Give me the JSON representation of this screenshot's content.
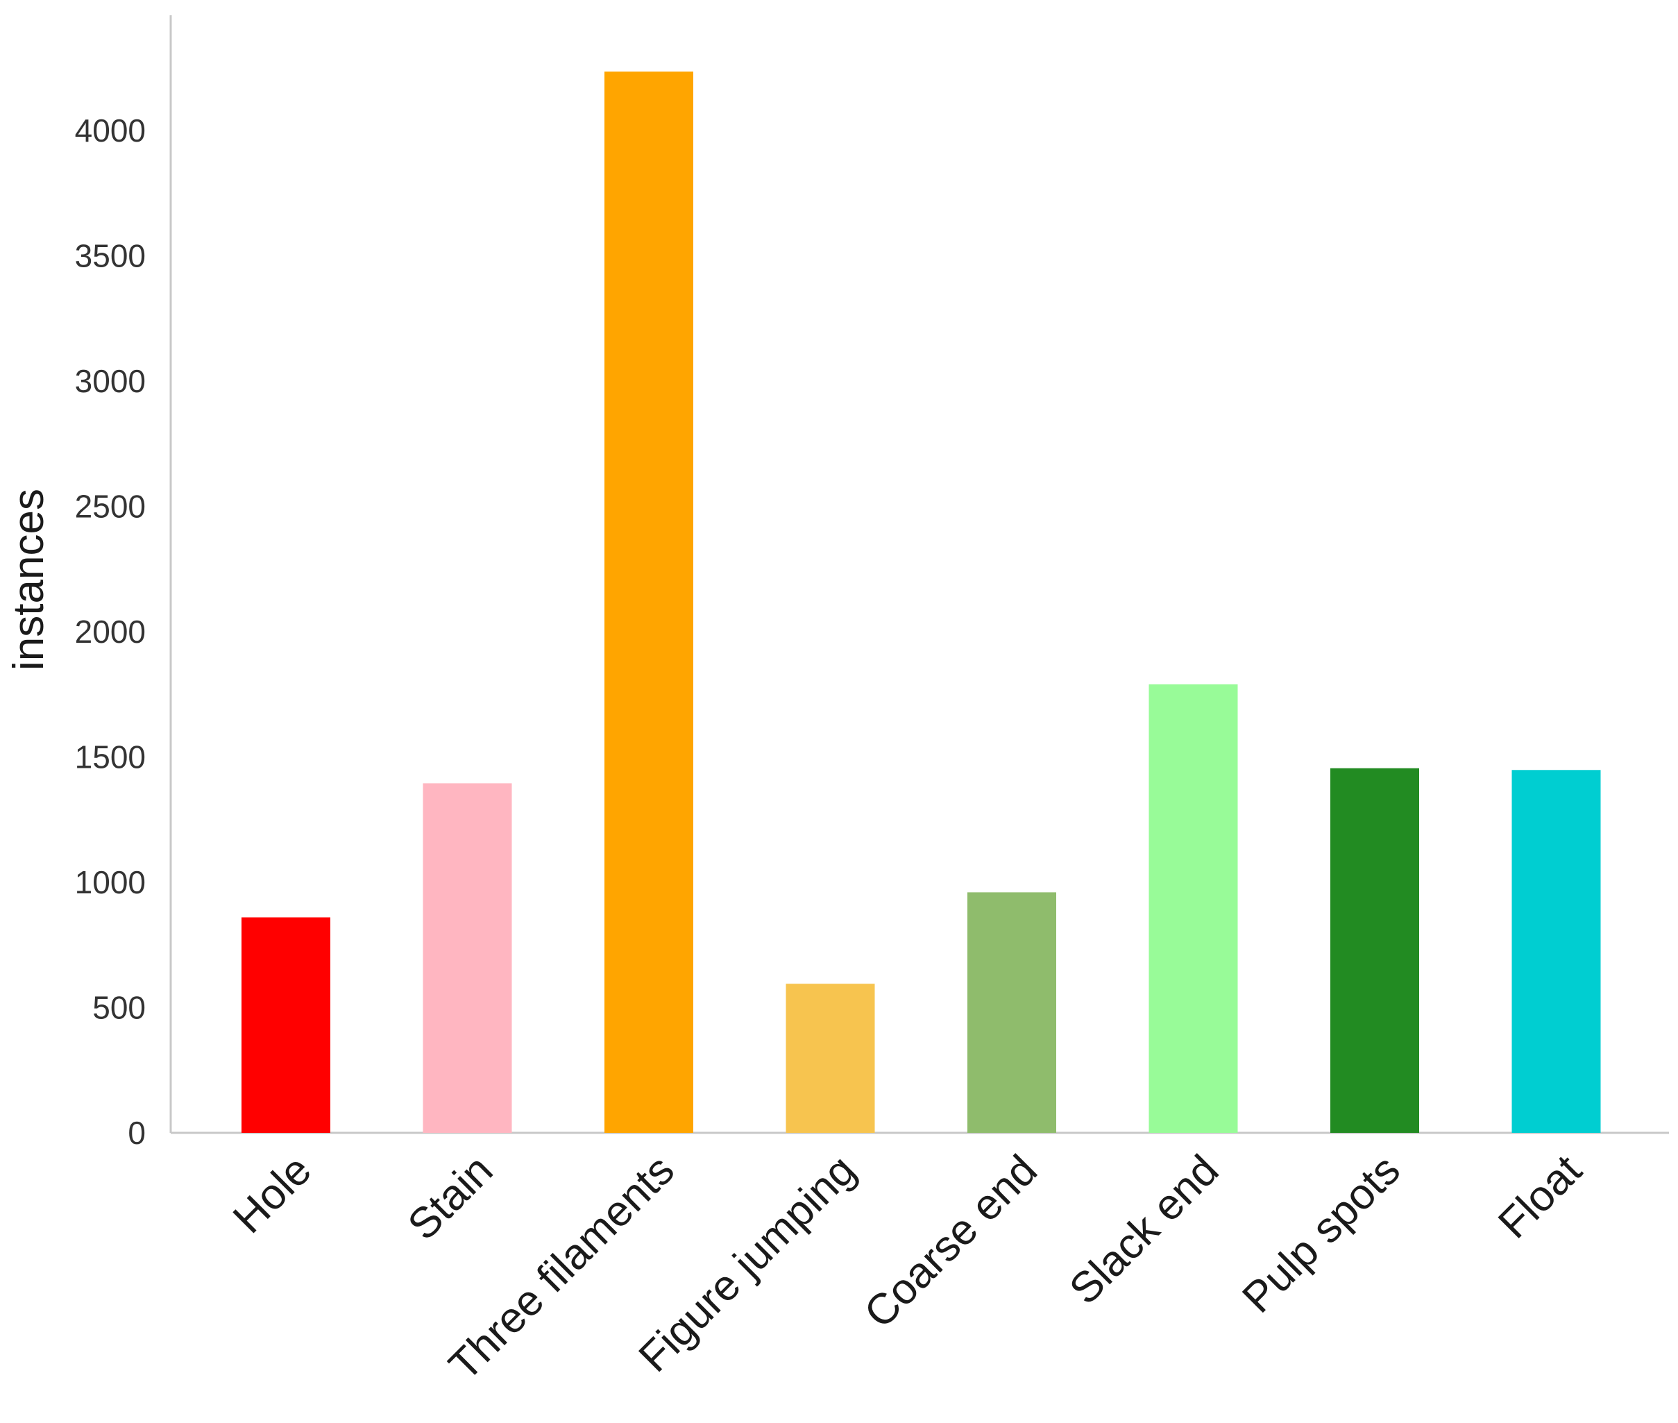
{
  "chart_data": {
    "type": "bar",
    "title": "",
    "xlabel": "",
    "ylabel": "instances",
    "categories": [
      "Hole",
      "Stain",
      "Three filaments",
      "Figure jumping",
      "Coarse end",
      "Slack end",
      "Pulp spots",
      "Float"
    ],
    "values": [
      860,
      1395,
      4235,
      595,
      960,
      1790,
      1455,
      1448
    ],
    "colors": [
      "#ff0000",
      "#ffb6c1",
      "#ffa500",
      "#f7c44f",
      "#8fbc6c",
      "#98fb98",
      "#228b22",
      "#00ced1"
    ],
    "ylim": [
      0,
      4300
    ],
    "yticks": [
      0,
      500,
      1000,
      1500,
      2000,
      2500,
      3000,
      3500,
      4000
    ],
    "grid": false,
    "legend": "none"
  }
}
